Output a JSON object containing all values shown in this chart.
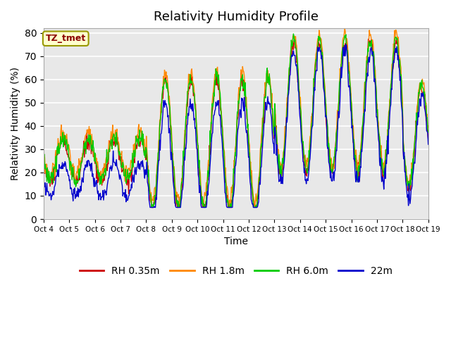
{
  "title": "Relativity Humidity Profile",
  "ylabel": "Relativity Humidity (%)",
  "xlabel": "Time",
  "annotation": "TZ_tmet",
  "ylim": [
    0,
    82
  ],
  "yticks": [
    0,
    10,
    20,
    30,
    40,
    50,
    60,
    70,
    80
  ],
  "x_labels": [
    "Oct 4",
    "Oct 5",
    "Oct 6",
    "Oct 7",
    "Oct 8",
    "Oct 9",
    "Oct 10",
    "Oct 11",
    "Oct 12",
    "Oct 13",
    "Oct 14",
    "Oct 15",
    "Oct 16",
    "Oct 17",
    "Oct 18",
    "Oct 19"
  ],
  "series_colors": [
    "#cc0000",
    "#ff8800",
    "#00cc00",
    "#0000cc"
  ],
  "series_labels": [
    "RH 0.35m",
    "RH 1.8m",
    "RH 6.0m",
    "22m"
  ],
  "plot_bg_color": "#e8e8e8",
  "title_fontsize": 13,
  "axis_fontsize": 10,
  "legend_fontsize": 10
}
